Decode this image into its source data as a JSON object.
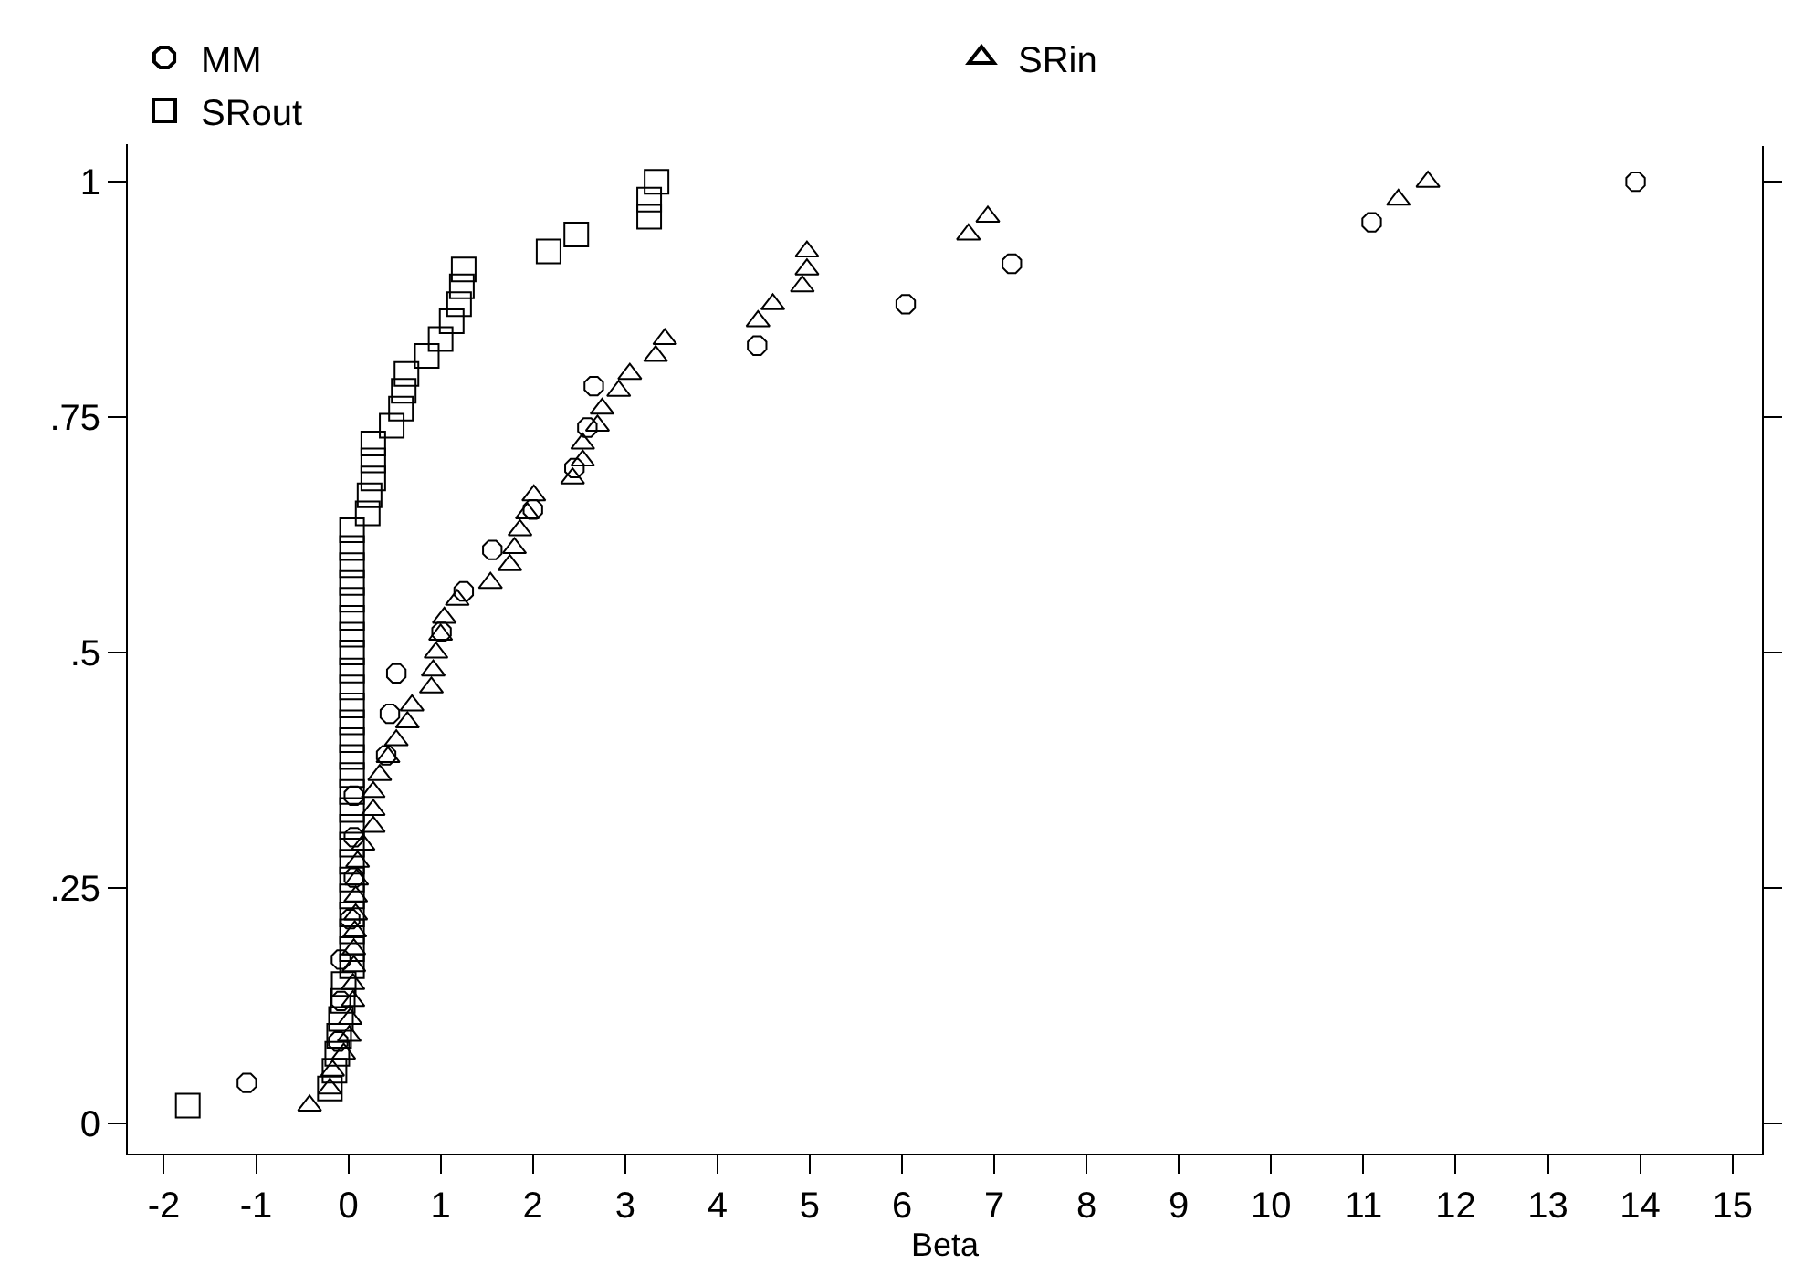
{
  "chart_data": {
    "type": "scatter",
    "xlabel": "Beta",
    "legend": "top",
    "xlim": [
      -2.39,
      15.32
    ],
    "ylim": [
      -0.032,
      1.038
    ],
    "xticks": [
      -2,
      -1,
      0,
      1,
      2,
      3,
      4,
      5,
      6,
      7,
      8,
      9,
      10,
      11,
      12,
      13,
      14,
      15
    ],
    "yticks": [
      0,
      {
        "value": 0.25,
        "label": ".25"
      },
      {
        "value": 0.5,
        "label": ".5"
      },
      {
        "value": 0.75,
        "label": ".75"
      },
      1
    ],
    "series": [
      {
        "name": "MM",
        "color": "#000000",
        "marker": "circle",
        "x": [
          -1.1,
          -0.11,
          -0.08,
          -0.08,
          0.02,
          0.06,
          0.06,
          0.06,
          0.41,
          0.45,
          0.52,
          1.01,
          1.25,
          1.56,
          2.0,
          2.45,
          2.59,
          2.66,
          4.43,
          6.04,
          7.19,
          11.09,
          13.95
        ],
        "values": [
          0.043,
          0.087,
          0.13,
          0.174,
          0.217,
          0.261,
          0.304,
          0.348,
          0.391,
          0.435,
          0.478,
          0.522,
          0.565,
          0.609,
          0.652,
          0.696,
          0.739,
          0.783,
          0.826,
          0.87,
          0.913,
          0.957,
          1.0
        ]
      },
      {
        "name": "SRin",
        "color": "#000000",
        "marker": "triangle",
        "x": [
          -0.42,
          -0.2,
          -0.17,
          -0.05,
          0.01,
          0.02,
          0.05,
          0.05,
          0.06,
          0.06,
          0.07,
          0.08,
          0.08,
          0.09,
          0.1,
          0.16,
          0.27,
          0.27,
          0.27,
          0.34,
          0.43,
          0.52,
          0.64,
          0.69,
          0.9,
          0.92,
          0.95,
          1.0,
          1.04,
          1.18,
          1.54,
          1.75,
          1.8,
          1.86,
          1.94,
          2.01,
          2.43,
          2.54,
          2.54,
          2.7,
          2.75,
          2.93,
          3.05,
          3.33,
          3.43,
          4.44,
          4.6,
          4.92,
          4.97,
          4.97,
          6.72,
          6.93,
          11.38,
          11.7
        ],
        "values": [
          0.019,
          0.037,
          0.056,
          0.074,
          0.093,
          0.111,
          0.13,
          0.148,
          0.167,
          0.185,
          0.204,
          0.222,
          0.241,
          0.259,
          0.278,
          0.296,
          0.315,
          0.333,
          0.352,
          0.37,
          0.389,
          0.407,
          0.426,
          0.444,
          0.463,
          0.481,
          0.5,
          0.519,
          0.537,
          0.556,
          0.574,
          0.593,
          0.611,
          0.63,
          0.648,
          0.667,
          0.685,
          0.704,
          0.722,
          0.741,
          0.759,
          0.778,
          0.796,
          0.815,
          0.833,
          0.852,
          0.87,
          0.889,
          0.907,
          0.926,
          0.944,
          0.963,
          0.981,
          1.0
        ]
      },
      {
        "name": "SRout",
        "color": "#000000",
        "marker": "square",
        "x": [
          -1.74,
          -0.2,
          -0.15,
          -0.12,
          -0.1,
          -0.08,
          -0.06,
          -0.05,
          0.04,
          0.04,
          0.04,
          0.04,
          0.04,
          0.04,
          0.04,
          0.04,
          0.04,
          0.04,
          0.04,
          0.04,
          0.04,
          0.04,
          0.04,
          0.04,
          0.04,
          0.04,
          0.04,
          0.04,
          0.04,
          0.04,
          0.04,
          0.04,
          0.04,
          0.04,
          0.21,
          0.23,
          0.27,
          0.27,
          0.27,
          0.47,
          0.57,
          0.6,
          0.63,
          0.85,
          1.0,
          1.12,
          1.2,
          1.23,
          1.25,
          2.17,
          2.47,
          3.26,
          3.26,
          3.34
        ],
        "values": [
          0.019,
          0.037,
          0.056,
          0.074,
          0.093,
          0.111,
          0.13,
          0.148,
          0.167,
          0.185,
          0.204,
          0.222,
          0.241,
          0.259,
          0.278,
          0.296,
          0.315,
          0.333,
          0.352,
          0.37,
          0.389,
          0.407,
          0.426,
          0.444,
          0.463,
          0.481,
          0.5,
          0.519,
          0.537,
          0.556,
          0.574,
          0.593,
          0.611,
          0.63,
          0.648,
          0.667,
          0.685,
          0.704,
          0.722,
          0.741,
          0.759,
          0.778,
          0.796,
          0.815,
          0.833,
          0.852,
          0.87,
          0.889,
          0.907,
          0.926,
          0.944,
          0.963,
          0.981,
          1.0
        ]
      }
    ]
  }
}
